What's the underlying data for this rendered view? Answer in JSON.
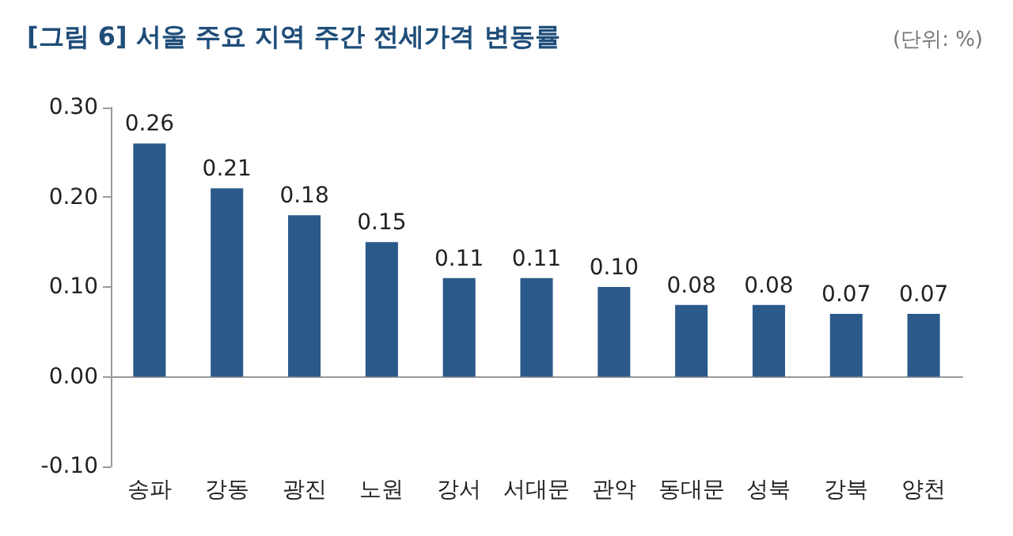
{
  "chart_data": {
    "type": "bar",
    "title": "[그림 6] 서울 주요 지역 주간 전세가격 변동률",
    "annotations": [
      "(단위: %)"
    ],
    "categories": [
      "송파",
      "강동",
      "광진",
      "노원",
      "강서",
      "서대문",
      "관악",
      "동대문",
      "성북",
      "강북",
      "양천"
    ],
    "values": [
      0.26,
      0.21,
      0.18,
      0.15,
      0.11,
      0.11,
      0.1,
      0.08,
      0.08,
      0.07,
      0.07
    ],
    "value_labels": [
      "0.26",
      "0.21",
      "0.18",
      "0.15",
      "0.11",
      "0.11",
      "0.10",
      "0.08",
      "0.08",
      "0.07",
      "0.07"
    ],
    "color": "#2b5a8a",
    "ylim": [
      -0.1,
      0.3
    ],
    "yticks": [
      {
        "value": -0.1,
        "label": "-0.10"
      },
      {
        "value": 0,
        "label": "0.00"
      },
      {
        "value": 0.1,
        "label": "0.10"
      },
      {
        "value": 0.2,
        "label": "0.20"
      },
      {
        "value": 0.3,
        "label": "0.30"
      }
    ]
  }
}
